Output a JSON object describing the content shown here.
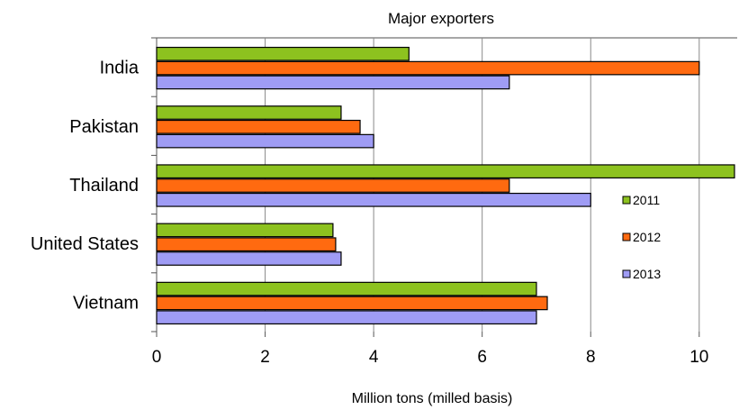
{
  "chart_data": {
    "type": "bar",
    "orientation": "horizontal",
    "title": "Major exporters",
    "xlabel": "Million tons (milled basis)",
    "ylabel": "",
    "categories": [
      "India",
      "Pakistan",
      "Thailand",
      "United States",
      "Vietnam"
    ],
    "series": [
      {
        "name": "2011",
        "color": "#8dc21f",
        "values": [
          4.65,
          3.4,
          10.65,
          3.25,
          7.0
        ]
      },
      {
        "name": "2012",
        "color": "#ff6a10",
        "values": [
          10.0,
          3.75,
          6.5,
          3.3,
          7.2
        ]
      },
      {
        "name": "2013",
        "color": "#9f9cf5",
        "values": [
          6.5,
          4.0,
          8.0,
          3.4,
          7.0
        ]
      }
    ],
    "xlim": [
      0,
      10.7
    ],
    "xticks": [
      "0",
      "2",
      "4",
      "6",
      "8",
      "10"
    ],
    "grid": "vertical",
    "legend": "right"
  }
}
